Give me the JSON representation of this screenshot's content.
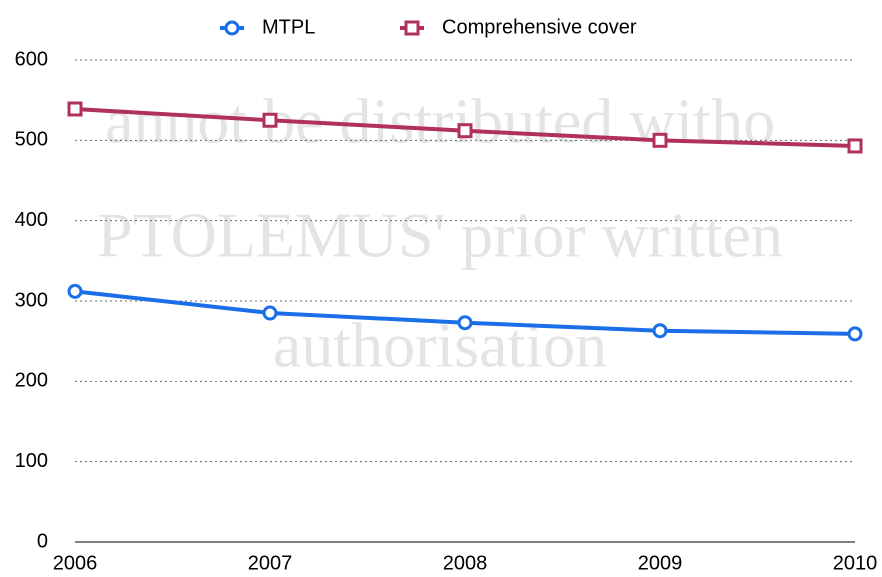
{
  "chart_data": {
    "type": "line",
    "watermark": [
      "annot be distributed witho",
      "PTOLEMUS' prior written",
      "authorisation"
    ],
    "x": [
      2006,
      2007,
      2008,
      2009,
      2010
    ],
    "xlim": [
      2006,
      2010
    ],
    "xticks": [
      2006,
      2007,
      2008,
      2009,
      2010
    ],
    "ylim": [
      0,
      600
    ],
    "yticks": [
      0,
      100,
      200,
      300,
      400,
      500,
      600
    ],
    "grid": true,
    "legend": "top",
    "series": [
      {
        "name": "MTPL",
        "color": "#1a6ee8",
        "marker": "circle",
        "values": [
          312,
          285,
          273,
          263,
          259
        ]
      },
      {
        "name": "Comprehensive cover",
        "color": "#b0325a",
        "marker": "square",
        "values": [
          539,
          525,
          512,
          500,
          493
        ]
      }
    ]
  }
}
